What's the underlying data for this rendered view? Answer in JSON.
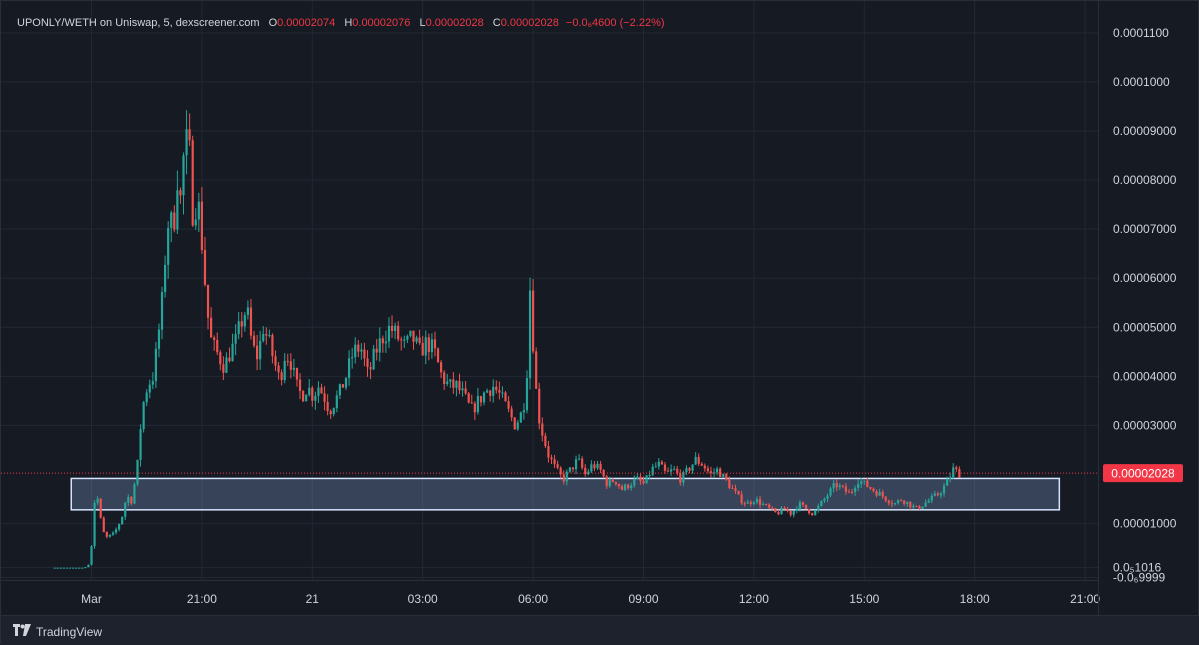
{
  "legend": {
    "symbol": "UPONLY/WETH on Uniswap, 5, dexscreener.com",
    "open_label": "O",
    "open": "0.00002074",
    "high_label": "H",
    "high": "0.00002076",
    "low_label": "L",
    "low": "0.00002028",
    "close_label": "C",
    "close": "0.00002028",
    "change": "−0.0₆4600 (−2.22%)"
  },
  "current_price_label": "0.00002028",
  "footer": {
    "brand": "TradingView",
    "logo_icon": "tradingview-logo-icon"
  },
  "colors": {
    "up": "#26a69a",
    "down": "#ef5350",
    "price_tag": "#f23645",
    "zone": "#7e9ccc"
  },
  "chart_data": {
    "type": "candlestick",
    "y_ticks": [
      {
        "value": 0.00011,
        "label": "0.0001100"
      },
      {
        "value": 0.0001,
        "label": "0.0001000"
      },
      {
        "value": 9e-05,
        "label": "0.00009000"
      },
      {
        "value": 8e-05,
        "label": "0.00008000"
      },
      {
        "value": 7e-05,
        "label": "0.00007000"
      },
      {
        "value": 6e-05,
        "label": "0.00006000"
      },
      {
        "value": 5e-05,
        "label": "0.00005000"
      },
      {
        "value": 4e-05,
        "label": "0.00004000"
      },
      {
        "value": 3e-05,
        "label": "0.00003000"
      },
      {
        "value": 1e-05,
        "label": "0.00001000"
      },
      {
        "value": 1.016e-06,
        "label": "0.0₅1016"
      },
      {
        "value": -9.999e-07,
        "label": "-0.0₆9999"
      }
    ],
    "x_ticks": [
      {
        "hours": 0,
        "label": "Mar"
      },
      {
        "hours": 3,
        "label": "21:00"
      },
      {
        "hours": 6,
        "label": "21"
      },
      {
        "hours": 9,
        "label": "03:00"
      },
      {
        "hours": 12,
        "label": "06:00"
      },
      {
        "hours": 15,
        "label": "09:00"
      },
      {
        "hours": 18,
        "label": "12:00"
      },
      {
        "hours": 21,
        "label": "15:00"
      },
      {
        "hours": 24,
        "label": "18:00"
      },
      {
        "hours": 27,
        "label": "21:00"
      }
    ],
    "ylim": [
      -1.5e-06,
      0.0001165
    ],
    "current_price": 2.028e-05,
    "support_zone": {
      "from_hours": -0.55,
      "to_hours": 26.3,
      "low": 1.28e-05,
      "high": 1.92e-05
    },
    "price_path": [
      [
        -1.0,
        1.016e-06
      ],
      [
        -0.1,
        1.016e-06
      ],
      [
        0.05,
        2e-06
      ],
      [
        0.2,
        1.8e-05
      ],
      [
        0.3,
        1.2e-05
      ],
      [
        0.45,
        7e-06
      ],
      [
        0.7,
        8e-06
      ],
      [
        0.9,
        1.1e-05
      ],
      [
        1.05,
        1.6e-05
      ],
      [
        1.15,
        1.4e-05
      ],
      [
        1.25,
        1.8e-05
      ],
      [
        1.35,
        2.3e-05
      ],
      [
        1.45,
        3.3e-05
      ],
      [
        1.6,
        3.8e-05
      ],
      [
        1.75,
        4e-05
      ],
      [
        1.85,
        4.5e-05
      ],
      [
        2.0,
        5.5e-05
      ],
      [
        2.1,
        6.6e-05
      ],
      [
        2.2,
        7.4e-05
      ],
      [
        2.3,
        6.8e-05
      ],
      [
        2.4,
        8.2e-05
      ],
      [
        2.5,
        7.6e-05
      ],
      [
        2.6,
        8.6e-05
      ],
      [
        2.7,
        8.8e-05
      ],
      [
        2.8,
        8.2e-05
      ],
      [
        2.85,
        7e-05
      ],
      [
        2.95,
        7.8e-05
      ],
      [
        3.1,
        6.6e-05
      ],
      [
        3.2,
        5.6e-05
      ],
      [
        3.3,
        4.8e-05
      ],
      [
        3.4,
        4.6e-05
      ],
      [
        3.55,
        4.4e-05
      ],
      [
        3.7,
        4.2e-05
      ],
      [
        3.85,
        4.5e-05
      ],
      [
        4.0,
        4.7e-05
      ],
      [
        4.15,
        5.1e-05
      ],
      [
        4.3,
        5.4e-05
      ],
      [
        4.45,
        4.6e-05
      ],
      [
        4.6,
        4.4e-05
      ],
      [
        4.75,
        5e-05
      ],
      [
        4.9,
        4.7e-05
      ],
      [
        5.05,
        4.3e-05
      ],
      [
        5.2,
        3.9e-05
      ],
      [
        5.35,
        4.5e-05
      ],
      [
        5.5,
        4.3e-05
      ],
      [
        5.65,
        3.8e-05
      ],
      [
        5.8,
        3.6e-05
      ],
      [
        5.95,
        3.8e-05
      ],
      [
        6.1,
        3.6e-05
      ],
      [
        6.25,
        3.8e-05
      ],
      [
        6.4,
        3.6e-05
      ],
      [
        6.55,
        3.3e-05
      ],
      [
        6.7,
        3.5e-05
      ],
      [
        6.85,
        3.7e-05
      ],
      [
        7.0,
        4e-05
      ],
      [
        7.2,
        4.5e-05
      ],
      [
        7.4,
        4.6e-05
      ],
      [
        7.6,
        4e-05
      ],
      [
        7.8,
        4.5e-05
      ],
      [
        8.0,
        4.8e-05
      ],
      [
        8.2,
        5e-05
      ],
      [
        8.4,
        4.8e-05
      ],
      [
        8.6,
        4.6e-05
      ],
      [
        8.8,
        4.8e-05
      ],
      [
        9.0,
        4.5e-05
      ],
      [
        9.2,
        4.7e-05
      ],
      [
        9.4,
        4.5e-05
      ],
      [
        9.6,
        4e-05
      ],
      [
        9.8,
        3.8e-05
      ],
      [
        10.0,
        3.8e-05
      ],
      [
        10.2,
        3.6e-05
      ],
      [
        10.4,
        3.3e-05
      ],
      [
        10.6,
        3.5e-05
      ],
      [
        10.8,
        3.7e-05
      ],
      [
        11.0,
        3.8e-05
      ],
      [
        11.2,
        3.6e-05
      ],
      [
        11.4,
        3.3e-05
      ],
      [
        11.6,
        3e-05
      ],
      [
        11.8,
        3.3e-05
      ],
      [
        11.9,
        3.8e-05
      ],
      [
        12.0,
        5.8e-05
      ],
      [
        12.1,
        4.5e-05
      ],
      [
        12.2,
        3.3e-05
      ],
      [
        12.35,
        2.8e-05
      ],
      [
        12.5,
        2.4e-05
      ],
      [
        12.7,
        2.1e-05
      ],
      [
        12.9,
        1.9e-05
      ],
      [
        13.1,
        2.1e-05
      ],
      [
        13.3,
        2.3e-05
      ],
      [
        13.5,
        2e-05
      ],
      [
        13.7,
        2.2e-05
      ],
      [
        13.9,
        2.1e-05
      ],
      [
        14.1,
        1.8e-05
      ],
      [
        14.3,
        1.9e-05
      ],
      [
        14.5,
        1.7e-05
      ],
      [
        14.7,
        1.8e-05
      ],
      [
        14.9,
        1.9e-05
      ],
      [
        15.1,
        1.8e-05
      ],
      [
        15.3,
        2.1e-05
      ],
      [
        15.5,
        2.2e-05
      ],
      [
        15.7,
        2e-05
      ],
      [
        15.9,
        2.1e-05
      ],
      [
        16.1,
        1.9e-05
      ],
      [
        16.3,
        2.1e-05
      ],
      [
        16.5,
        2.3e-05
      ],
      [
        16.7,
        2.2e-05
      ],
      [
        16.9,
        2e-05
      ],
      [
        17.1,
        2.1e-05
      ],
      [
        17.3,
        1.9e-05
      ],
      [
        17.5,
        1.7e-05
      ],
      [
        17.7,
        1.5e-05
      ],
      [
        17.9,
        1.4e-05
      ],
      [
        18.1,
        1.5e-05
      ],
      [
        18.3,
        1.4e-05
      ],
      [
        18.5,
        1.3e-05
      ],
      [
        18.7,
        1.2e-05
      ],
      [
        18.9,
        1.3e-05
      ],
      [
        19.1,
        1.2e-05
      ],
      [
        19.3,
        1.4e-05
      ],
      [
        19.5,
        1.3e-05
      ],
      [
        19.7,
        1.2e-05
      ],
      [
        19.9,
        1.4e-05
      ],
      [
        20.1,
        1.6e-05
      ],
      [
        20.3,
        1.8e-05
      ],
      [
        20.5,
        1.7e-05
      ],
      [
        20.7,
        1.6e-05
      ],
      [
        20.9,
        1.9e-05
      ],
      [
        21.1,
        1.8e-05
      ],
      [
        21.3,
        1.7e-05
      ],
      [
        21.5,
        1.6e-05
      ],
      [
        21.7,
        1.5e-05
      ],
      [
        21.9,
        1.4e-05
      ],
      [
        22.1,
        1.5e-05
      ],
      [
        22.3,
        1.4e-05
      ],
      [
        22.5,
        1.3e-05
      ],
      [
        22.7,
        1.4e-05
      ],
      [
        22.9,
        1.5e-05
      ],
      [
        23.1,
        1.6e-05
      ],
      [
        23.3,
        1.8e-05
      ],
      [
        23.5,
        2.1e-05
      ],
      [
        23.65,
        2.028e-05
      ]
    ]
  }
}
